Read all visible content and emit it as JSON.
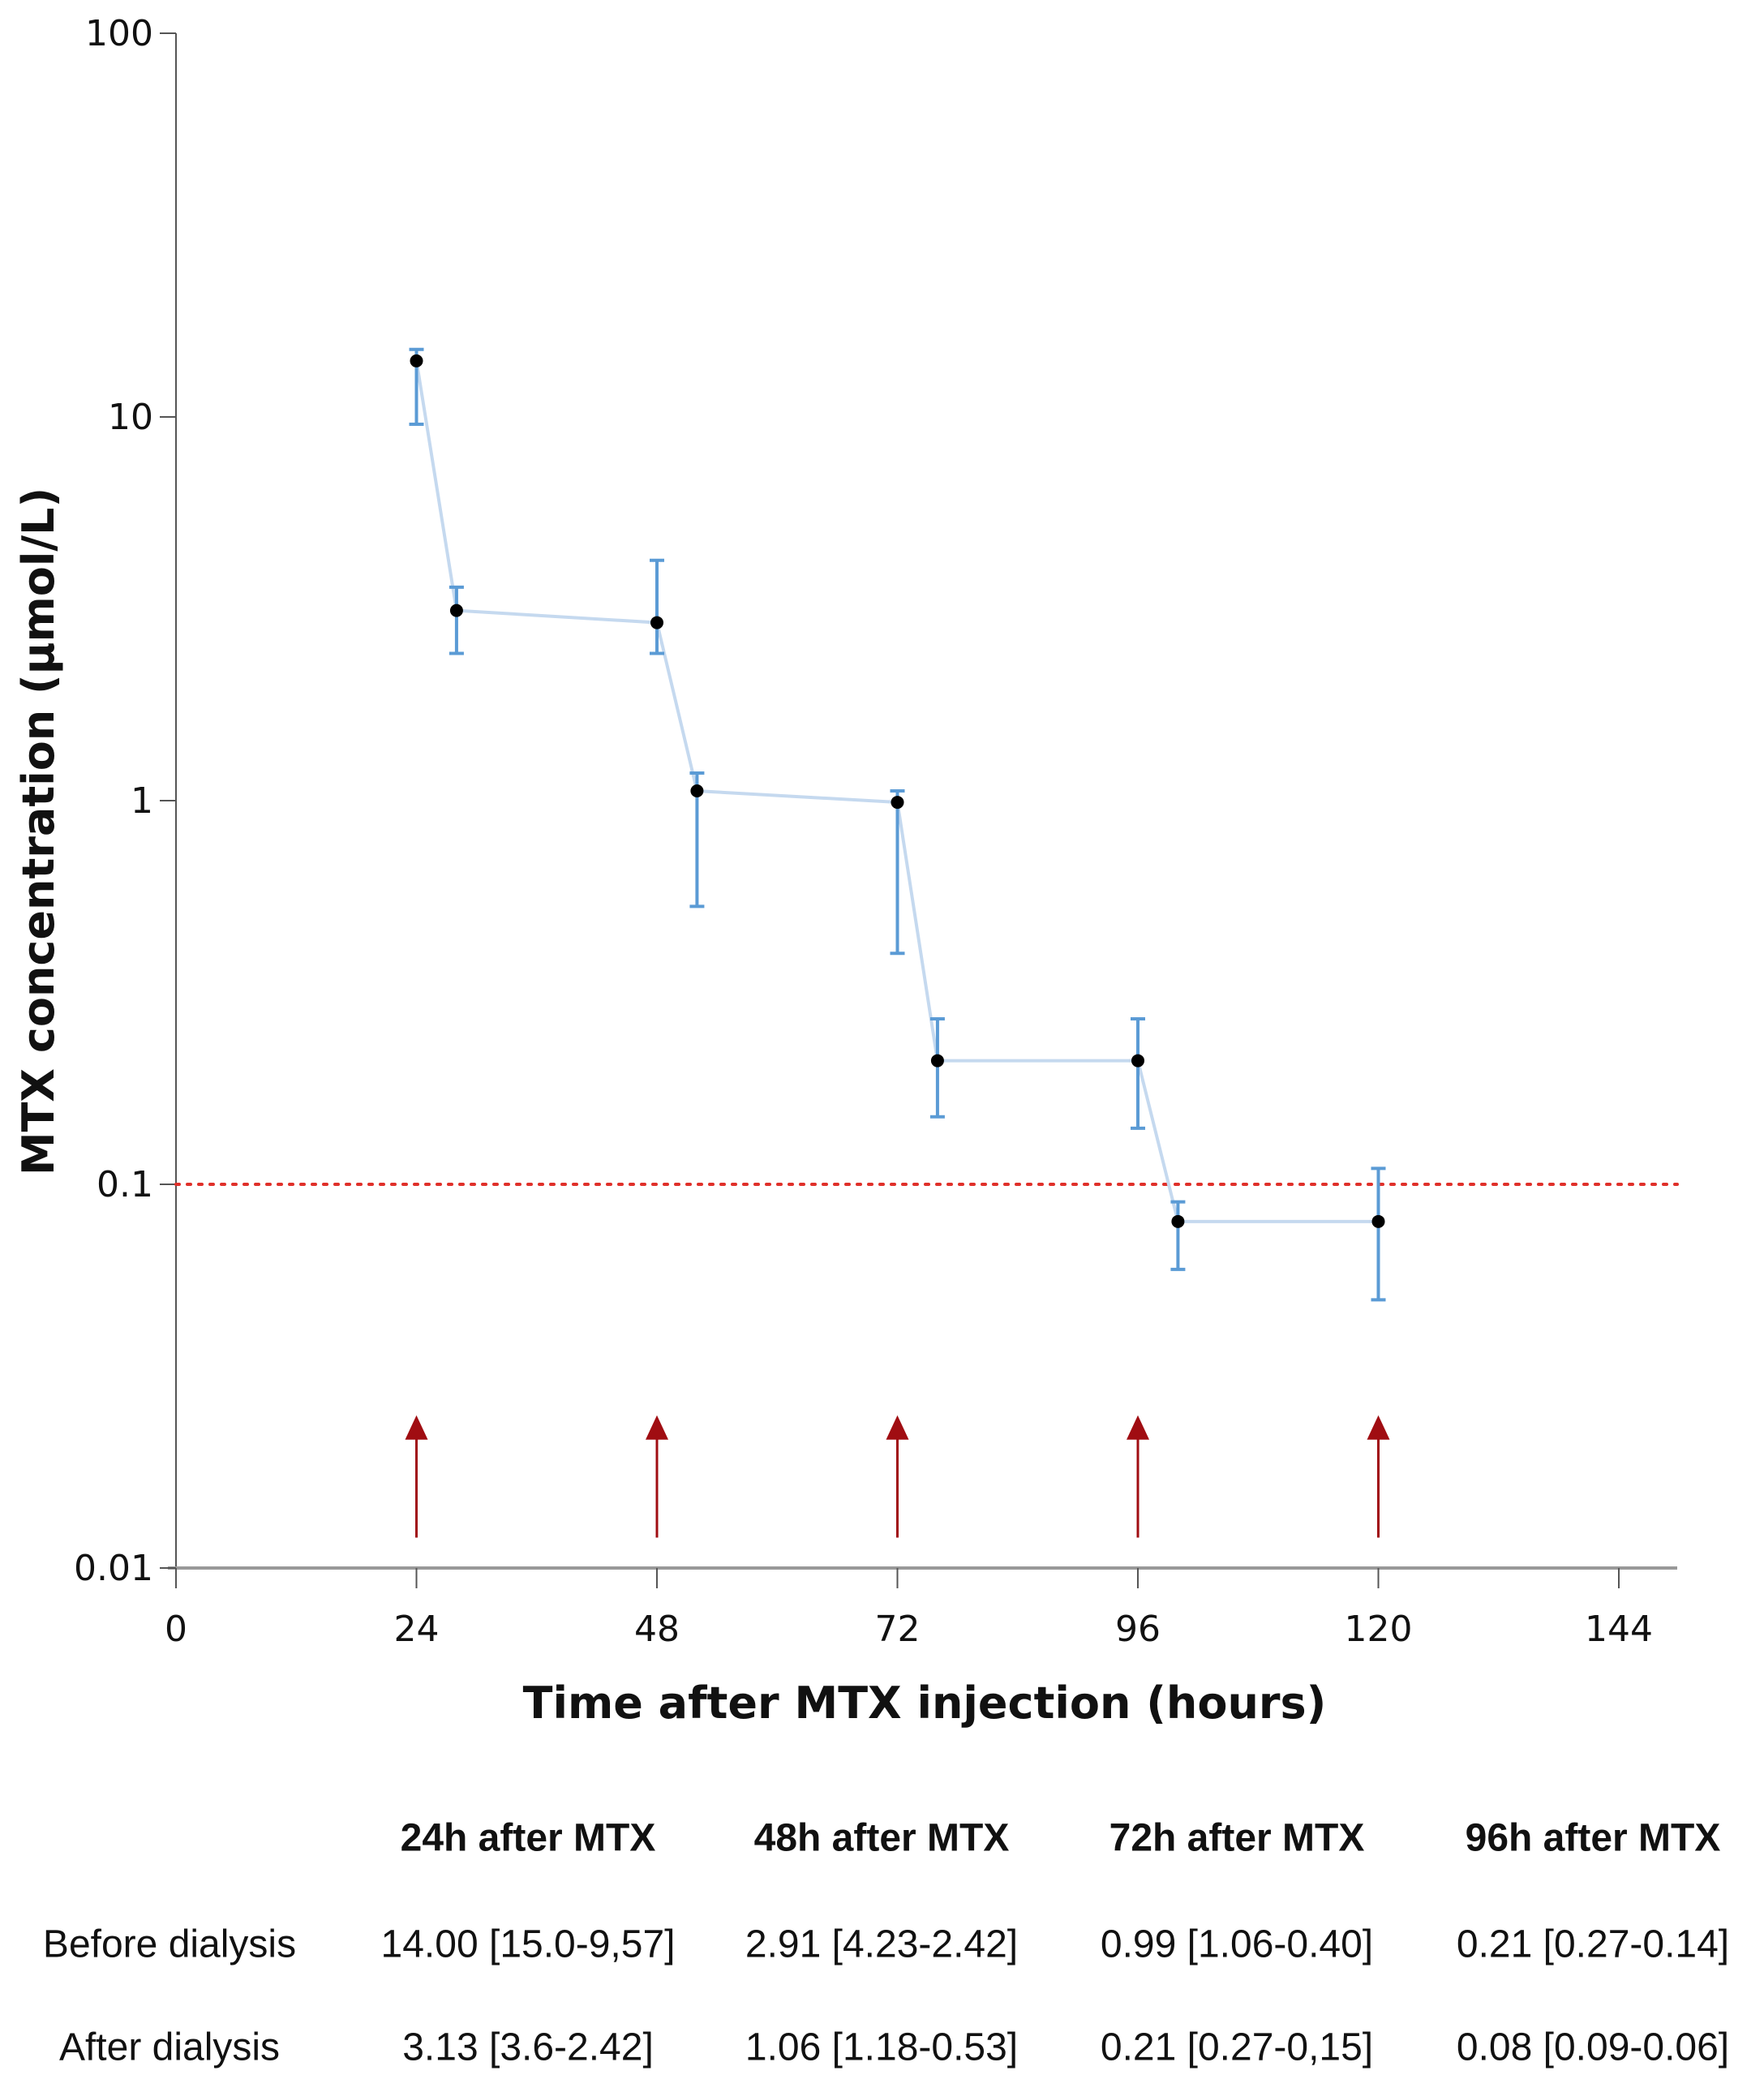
{
  "chart_data": {
    "type": "scatter",
    "xlabel": "Time after MTX injection (hours)",
    "ylabel": "MTX concentration (µmol/L)",
    "xlim": [
      0,
      150
    ],
    "ylim": [
      0.01,
      100
    ],
    "yscale": "log",
    "x_ticks": [
      "0",
      "24",
      "48",
      "72",
      "96",
      "120",
      "144"
    ],
    "y_ticks": [
      "0.01",
      "0.1",
      "1",
      "10",
      "100"
    ],
    "grid": false,
    "series": [
      {
        "points": [
          {
            "x": 24,
            "y": 14.0,
            "lo": 9.57,
            "hi": 15.0
          },
          {
            "x": 28,
            "y": 3.13,
            "lo": 2.42,
            "hi": 3.6
          },
          {
            "x": 48,
            "y": 2.91,
            "lo": 2.42,
            "hi": 4.23
          },
          {
            "x": 52,
            "y": 1.06,
            "lo": 0.53,
            "hi": 1.18
          },
          {
            "x": 72,
            "y": 0.99,
            "lo": 0.4,
            "hi": 1.06
          },
          {
            "x": 76,
            "y": 0.21,
            "lo": 0.15,
            "hi": 0.27
          },
          {
            "x": 96,
            "y": 0.21,
            "lo": 0.14,
            "hi": 0.27
          },
          {
            "x": 100,
            "y": 0.08,
            "lo": 0.06,
            "hi": 0.09
          },
          {
            "x": 120,
            "y": 0.08,
            "lo": 0.05,
            "hi": 0.11
          }
        ]
      }
    ],
    "reference_line": {
      "y": 0.1,
      "style": "dotted",
      "color": "#e0302a"
    },
    "arrows": {
      "x": [
        24,
        48,
        72,
        96,
        120
      ],
      "from": 0.012,
      "to": 0.025,
      "color": "#a00d12"
    },
    "colors": {
      "line": "#c5d9ef",
      "errorbar": "#5b9bd5",
      "marker": "#000000"
    }
  },
  "table": {
    "headers": [
      "24h after MTX",
      "48h after MTX",
      "72h after MTX",
      "96h after MTX"
    ],
    "rows": [
      {
        "label": "Before dialysis",
        "values": [
          "14.00 [15.0-9,57]",
          "2.91 [4.23-2.42]",
          "0.99 [1.06-0.40]",
          "0.21 [0.27-0.14]"
        ]
      },
      {
        "label": "After dialysis",
        "values": [
          "3.13 [3.6-2.42]",
          "1.06 [1.18-0.53]",
          "0.21 [0.27-0,15]",
          "0.08 [0.09-0.06]"
        ]
      }
    ]
  }
}
